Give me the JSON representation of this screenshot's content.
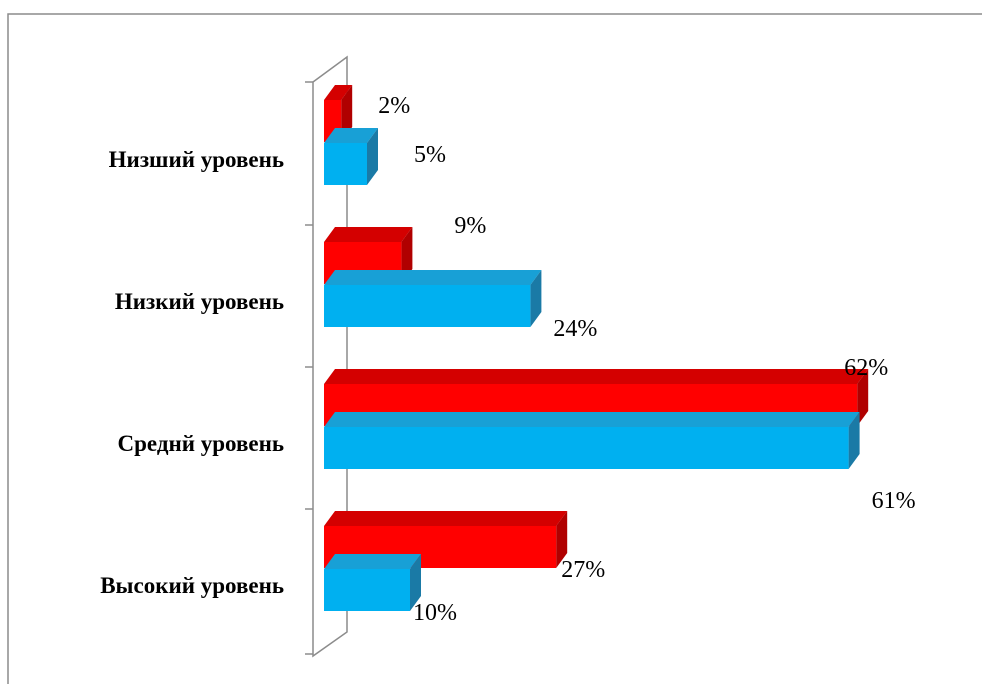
{
  "chart_data": {
    "type": "bar",
    "orientation": "horizontal",
    "style": "3d",
    "categories": [
      "Низший уровень",
      "Низкий уровень",
      "Среднй уровень",
      "Высокий уровень"
    ],
    "series": [
      {
        "color": "#ff0000",
        "values": [
          2,
          9,
          62,
          27
        ],
        "labels": [
          "2%",
          "9%",
          "62%",
          "27%"
        ]
      },
      {
        "color": "#00b0f0",
        "values": [
          5,
          24,
          61,
          10
        ],
        "labels": [
          "5%",
          "24%",
          "61%",
          "10%"
        ]
      }
    ],
    "unit": "%",
    "xlim": [
      0,
      70
    ],
    "grid": false,
    "legend": "none"
  }
}
